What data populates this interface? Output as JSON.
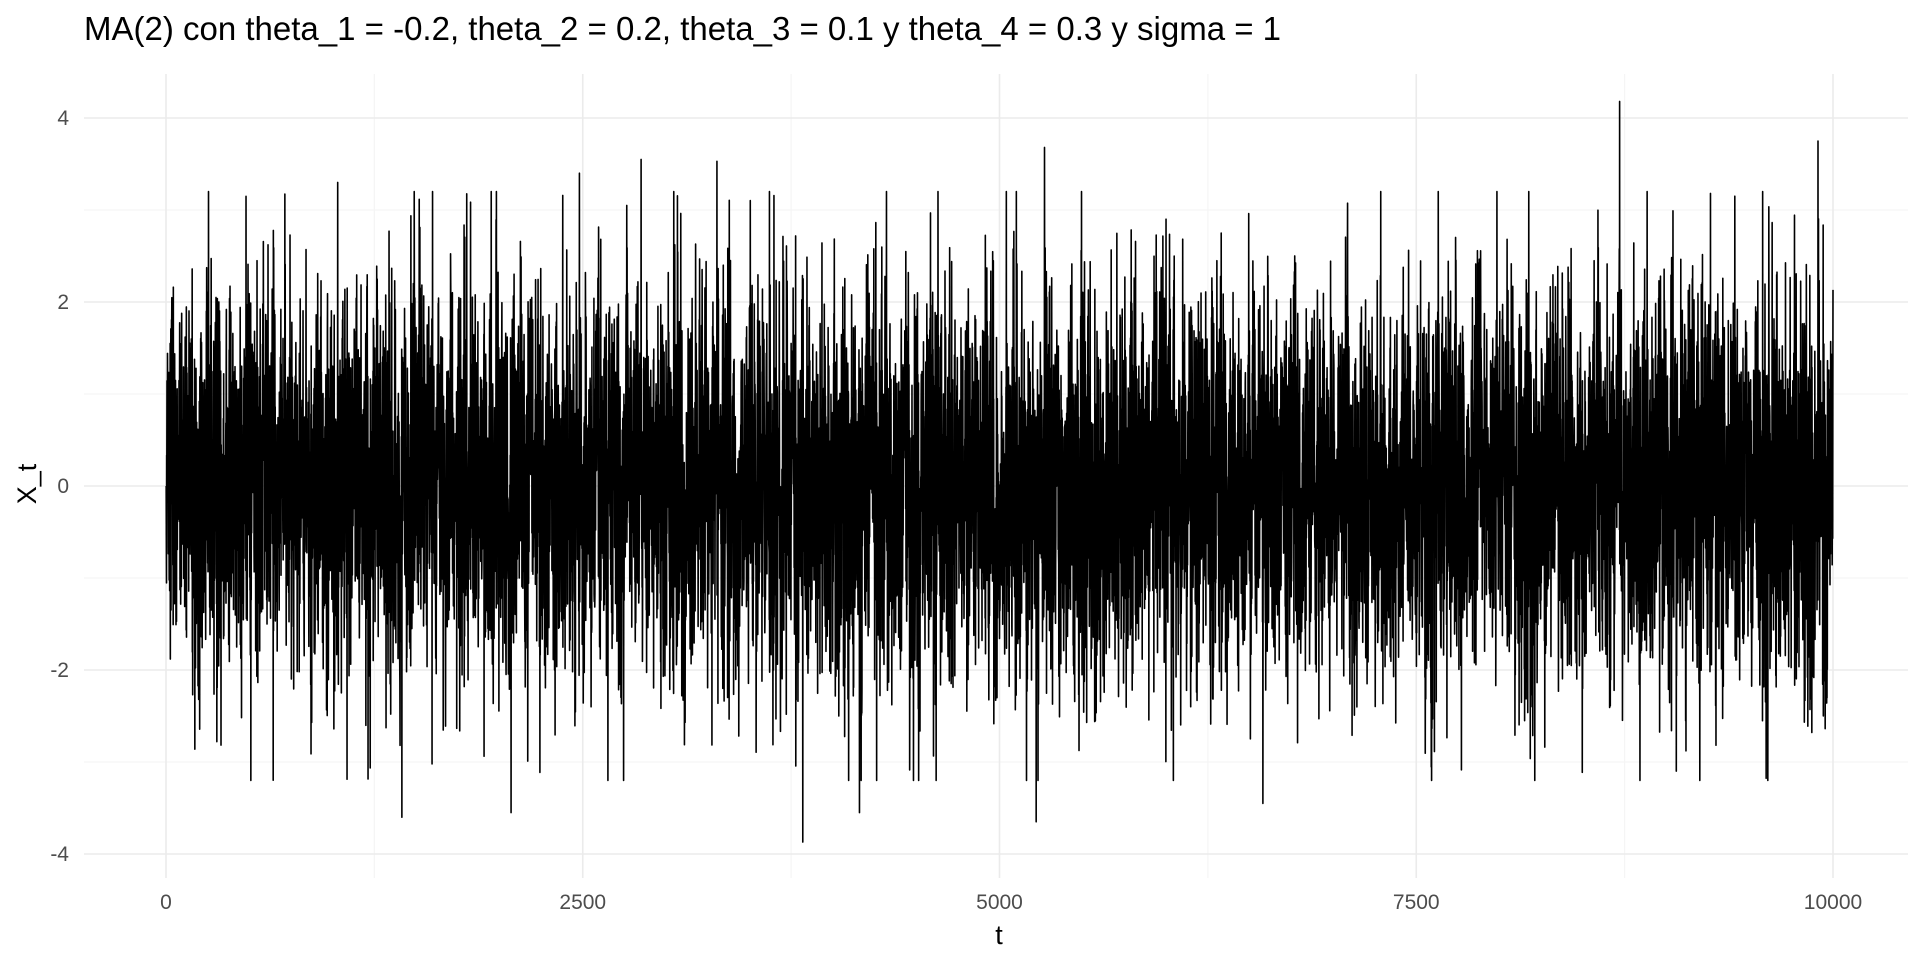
{
  "chart_data": {
    "type": "line",
    "title": "MA(2) con theta_1 = -0.2, theta_2 = 0.2, theta_3 = 0.1 y theta_4 = 0.3 y sigma = 1",
    "xlabel": "t",
    "ylabel": "X_t",
    "xlim": [
      1,
      10000
    ],
    "ylim": [
      -4.2,
      4.3
    ],
    "x_ticks": [
      0,
      2500,
      5000,
      7500,
      10000
    ],
    "x_tick_labels": [
      "0",
      "2500",
      "5000",
      "7500",
      "10000"
    ],
    "y_ticks": [
      -4,
      -2,
      0,
      2,
      4
    ],
    "y_tick_labels": [
      "-4",
      "-2",
      "0",
      "2",
      "4"
    ],
    "grid": true,
    "legend": "none",
    "series": [
      {
        "n": 10000,
        "mean": 0,
        "sd": 1.1,
        "min": -3.87,
        "max": 4.18,
        "color": "#000000",
        "extremes": [
          {
            "x": 1030,
            "y": 3.3
          },
          {
            "x": 1415,
            "y": -3.6
          },
          {
            "x": 2070,
            "y": -3.55
          },
          {
            "x": 2480,
            "y": 3.4
          },
          {
            "x": 2850,
            "y": 3.55
          },
          {
            "x": 3305,
            "y": 3.53
          },
          {
            "x": 3820,
            "y": -3.87
          },
          {
            "x": 4160,
            "y": -3.55
          },
          {
            "x": 5220,
            "y": -3.65
          },
          {
            "x": 5270,
            "y": 3.68
          },
          {
            "x": 6580,
            "y": -3.45
          },
          {
            "x": 8720,
            "y": 4.18
          },
          {
            "x": 9910,
            "y": 3.75
          }
        ]
      }
    ],
    "colors": {
      "background": "#ffffff",
      "grid_major": "#ebebeb",
      "grid_minor": "#f5f5f5",
      "line": "#000000",
      "tick_text": "#4d4d4d"
    }
  }
}
